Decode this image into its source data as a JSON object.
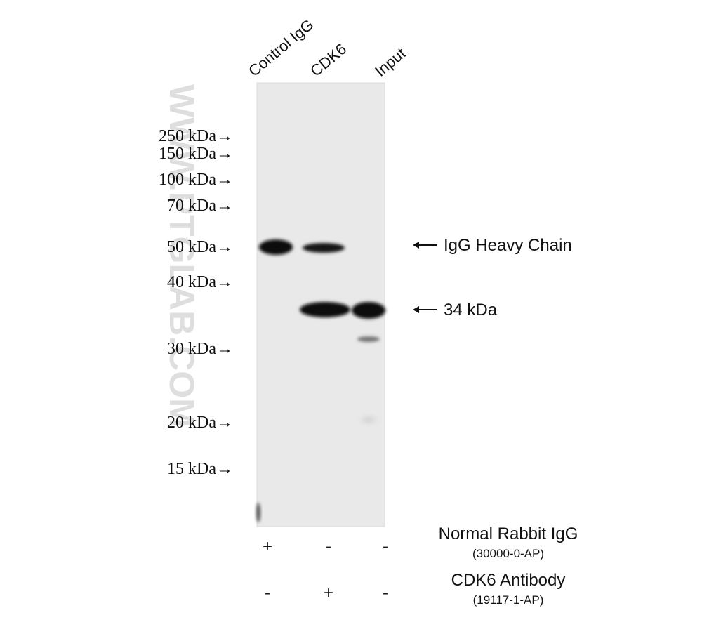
{
  "lanes": [
    "Control IgG",
    "CDK6",
    "Input"
  ],
  "markers": [
    "250 kDa→",
    "150 kDa→",
    "100 kDa→",
    "70 kDa→",
    "50 kDa→",
    "40 kDa→",
    "30 kDa→",
    "20 kDa→",
    "15 kDa→"
  ],
  "band_labels": [
    "IgG Heavy Chain",
    "34 kDa"
  ],
  "watermark": "WWW.PTGLAB.COM",
  "rows": [
    {
      "label": "Normal Rabbit IgG",
      "catalog": "(30000-0-AP)",
      "signs": [
        "+",
        "-",
        "-"
      ]
    },
    {
      "label": "CDK6 Antibody",
      "catalog": "(19117-1-AP)",
      "signs": [
        "-",
        "+",
        "-"
      ]
    }
  ]
}
